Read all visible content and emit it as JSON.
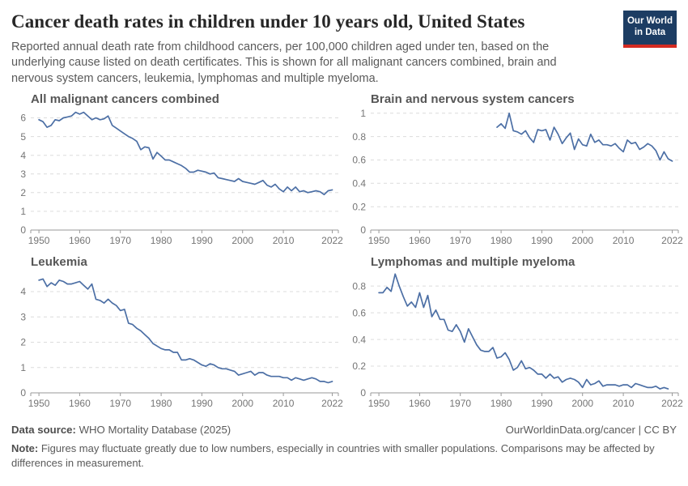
{
  "header": {
    "title": "Cancer death rates in children under 10 years old, United States",
    "subtitle": "Reported annual death rate from childhood cancers, per 100,000 children aged under ten, based on the underlying cause listed on death certificates. This is shown for all malignant cancers combined, brain and nervous system cancers, leukemia, lymphomas and multiple myeloma.",
    "logo": {
      "line1": "Our World",
      "line2": "in Data",
      "bg_color": "#1d3d63",
      "stripe_color": "#d42b22"
    }
  },
  "chart_data": [
    {
      "type": "line",
      "title": "All malignant cancers combined",
      "x": {
        "min": 1948,
        "max": 2023.5,
        "ticks": [
          1950,
          1960,
          1970,
          1980,
          1990,
          2000,
          2010,
          2022
        ]
      },
      "y": {
        "min": 0,
        "max": 6.5,
        "ticks": [
          0,
          1,
          2,
          3,
          4,
          5,
          6
        ]
      },
      "grid": "dashed",
      "legend": "none",
      "line_color": "#4c6fa5",
      "series": [
        {
          "name": "United States",
          "x_start": 1950,
          "values": [
            5.9,
            5.8,
            5.5,
            5.6,
            5.9,
            5.85,
            6.0,
            6.05,
            6.1,
            6.3,
            6.2,
            6.3,
            6.1,
            5.9,
            6.0,
            5.9,
            5.95,
            6.1,
            5.6,
            5.45,
            5.3,
            5.15,
            5.0,
            4.9,
            4.75,
            4.3,
            4.45,
            4.4,
            3.8,
            4.15,
            3.95,
            3.75,
            3.75,
            3.65,
            3.55,
            3.45,
            3.3,
            3.1,
            3.1,
            3.2,
            3.15,
            3.1,
            3.0,
            3.05,
            2.8,
            2.75,
            2.7,
            2.65,
            2.6,
            2.75,
            2.6,
            2.55,
            2.5,
            2.45,
            2.55,
            2.65,
            2.4,
            2.3,
            2.45,
            2.2,
            2.05,
            2.3,
            2.1,
            2.3,
            2.05,
            2.1,
            2.0,
            2.05,
            2.1,
            2.05,
            1.9,
            2.1,
            2.15
          ]
        }
      ]
    },
    {
      "type": "line",
      "title": "Brain and nervous system cancers",
      "x": {
        "min": 1948,
        "max": 2023.5,
        "ticks": [
          1950,
          1960,
          1970,
          1980,
          1990,
          2000,
          2010,
          2022
        ]
      },
      "y": {
        "min": 0,
        "max": 1.04,
        "ticks": [
          0,
          0.2,
          0.4,
          0.6,
          0.8,
          1
        ]
      },
      "grid": "dashed",
      "legend": "none",
      "line_color": "#4c6fa5",
      "series": [
        {
          "name": "United States",
          "x_start": 1979,
          "values": [
            0.88,
            0.91,
            0.87,
            1.0,
            0.85,
            0.84,
            0.82,
            0.85,
            0.79,
            0.75,
            0.86,
            0.85,
            0.86,
            0.77,
            0.88,
            0.82,
            0.74,
            0.79,
            0.83,
            0.69,
            0.78,
            0.73,
            0.72,
            0.82,
            0.75,
            0.77,
            0.73,
            0.73,
            0.72,
            0.74,
            0.7,
            0.67,
            0.77,
            0.74,
            0.75,
            0.69,
            0.71,
            0.74,
            0.72,
            0.68,
            0.6,
            0.67,
            0.61,
            0.59
          ]
        }
      ]
    },
    {
      "type": "line",
      "title": "Leukemia",
      "x": {
        "min": 1948,
        "max": 2023.5,
        "ticks": [
          1950,
          1960,
          1970,
          1980,
          1990,
          2000,
          2010,
          2022
        ]
      },
      "y": {
        "min": 0,
        "max": 4.8,
        "ticks": [
          0,
          1,
          2,
          3,
          4
        ]
      },
      "grid": "dashed",
      "legend": "none",
      "line_color": "#4c6fa5",
      "series": [
        {
          "name": "United States",
          "x_start": 1950,
          "values": [
            4.45,
            4.5,
            4.2,
            4.35,
            4.25,
            4.45,
            4.4,
            4.3,
            4.3,
            4.35,
            4.4,
            4.25,
            4.1,
            4.3,
            3.7,
            3.65,
            3.55,
            3.7,
            3.55,
            3.45,
            3.25,
            3.3,
            2.75,
            2.7,
            2.55,
            2.45,
            2.3,
            2.15,
            1.95,
            1.85,
            1.75,
            1.7,
            1.7,
            1.6,
            1.6,
            1.3,
            1.3,
            1.35,
            1.3,
            1.2,
            1.1,
            1.05,
            1.15,
            1.1,
            1.0,
            0.95,
            0.95,
            0.9,
            0.85,
            0.7,
            0.75,
            0.8,
            0.85,
            0.7,
            0.8,
            0.8,
            0.7,
            0.65,
            0.65,
            0.65,
            0.6,
            0.6,
            0.5,
            0.6,
            0.55,
            0.5,
            0.55,
            0.6,
            0.55,
            0.45,
            0.45,
            0.4,
            0.45
          ]
        }
      ]
    },
    {
      "type": "line",
      "title": "Lymphomas and multiple myeloma",
      "x": {
        "min": 1948,
        "max": 2023.5,
        "ticks": [
          1950,
          1960,
          1970,
          1980,
          1990,
          2000,
          2010,
          2022
        ]
      },
      "y": {
        "min": 0,
        "max": 0.91,
        "ticks": [
          0,
          0.2,
          0.4,
          0.6,
          0.8
        ]
      },
      "grid": "dashed",
      "legend": "none",
      "line_color": "#4c6fa5",
      "series": [
        {
          "name": "United States",
          "x_start": 1950,
          "values": [
            0.75,
            0.75,
            0.79,
            0.76,
            0.89,
            0.8,
            0.72,
            0.65,
            0.68,
            0.64,
            0.75,
            0.64,
            0.73,
            0.57,
            0.62,
            0.55,
            0.55,
            0.47,
            0.46,
            0.51,
            0.46,
            0.38,
            0.48,
            0.42,
            0.36,
            0.32,
            0.31,
            0.31,
            0.34,
            0.26,
            0.27,
            0.3,
            0.25,
            0.17,
            0.19,
            0.24,
            0.18,
            0.19,
            0.17,
            0.14,
            0.14,
            0.11,
            0.14,
            0.11,
            0.12,
            0.08,
            0.1,
            0.11,
            0.1,
            0.08,
            0.04,
            0.1,
            0.06,
            0.07,
            0.09,
            0.05,
            0.06,
            0.06,
            0.06,
            0.05,
            0.06,
            0.06,
            0.04,
            0.07,
            0.06,
            0.05,
            0.04,
            0.04,
            0.05,
            0.03,
            0.04,
            0.03
          ]
        }
      ]
    }
  ],
  "footer": {
    "source_label": "Data source:",
    "source_text": "WHO Mortality Database (2025)",
    "url_text": "OurWorldinData.org/cancer | CC BY",
    "note_label": "Note:",
    "note_text": "Figures may fluctuate greatly due to low numbers, especially in countries with smaller populations. Comparisons may be affected by differences in measurement."
  },
  "style": {
    "gridline_color": "#dcdcdc",
    "axis_color": "#9a9a9a",
    "tick_label_color": "#757575"
  }
}
